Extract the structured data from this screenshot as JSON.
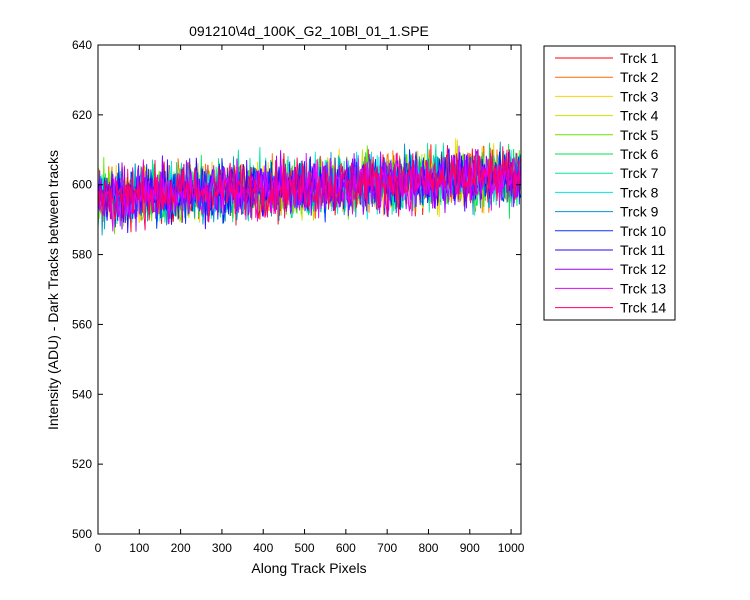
{
  "window": {
    "background": "#ffffff"
  },
  "chart_data": {
    "type": "line",
    "title": "091210\\4d_100K_G2_10Bl_01_1.SPE",
    "xlabel": "Along Track Pixels",
    "ylabel": "Intensity (ADU) - Dark Tracks between tracks",
    "xlim": [
      0,
      1024
    ],
    "ylim": [
      500,
      640
    ],
    "xticks": [
      0,
      100,
      200,
      300,
      400,
      500,
      600,
      700,
      800,
      900,
      1000
    ],
    "yticks": [
      500,
      520,
      540,
      560,
      580,
      600,
      620,
      640
    ],
    "grid": false,
    "legend_placement": "outside-right",
    "trend": {
      "x": [
        0,
        1024
      ],
      "y": [
        596.5,
        602.5
      ]
    },
    "noise_sd_approx": 4,
    "observed_min": 580,
    "observed_max": 621,
    "series": [
      {
        "name": "Trck 1",
        "color": "#ff0000"
      },
      {
        "name": "Trck 2",
        "color": "#ff6a00"
      },
      {
        "name": "Trck 3",
        "color": "#ffd200"
      },
      {
        "name": "Trck 4",
        "color": "#c8e400"
      },
      {
        "name": "Trck 5",
        "color": "#66e600"
      },
      {
        "name": "Trck 6",
        "color": "#00e64d"
      },
      {
        "name": "Trck 7",
        "color": "#00e6a0"
      },
      {
        "name": "Trck 8",
        "color": "#00e6e6"
      },
      {
        "name": "Trck 9",
        "color": "#0099cc"
      },
      {
        "name": "Trck 10",
        "color": "#0033ff"
      },
      {
        "name": "Trck 11",
        "color": "#3300ff"
      },
      {
        "name": "Trck 12",
        "color": "#9900ff"
      },
      {
        "name": "Trck 13",
        "color": "#e600ff"
      },
      {
        "name": "Trck 14",
        "color": "#ff0066"
      }
    ]
  }
}
